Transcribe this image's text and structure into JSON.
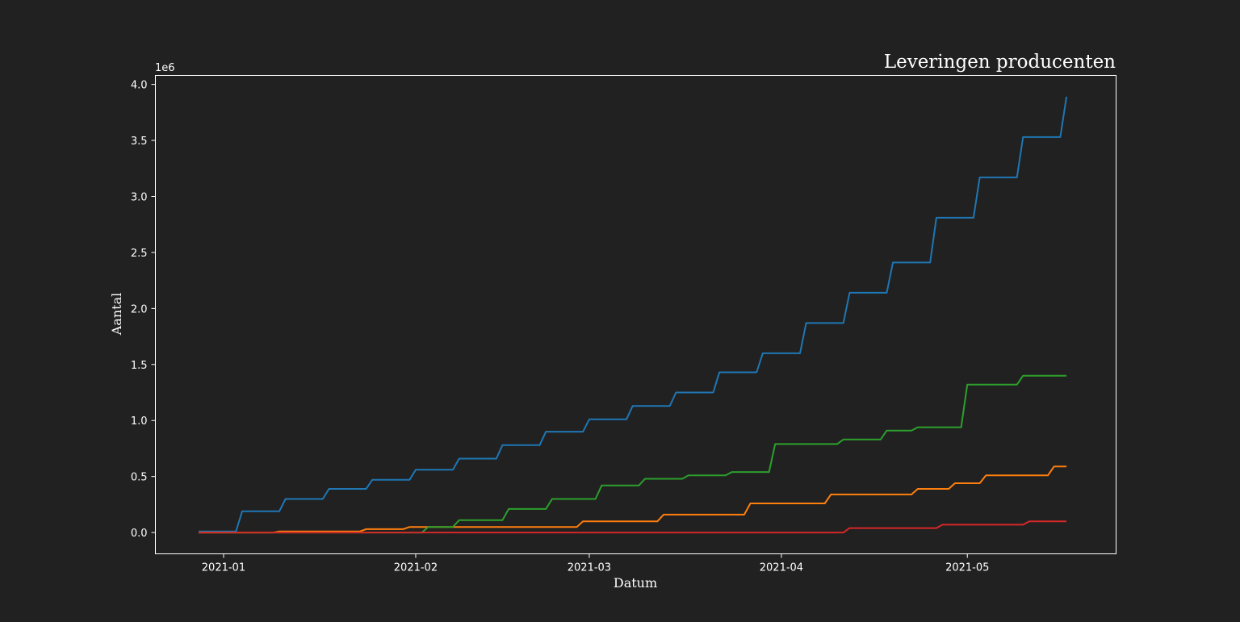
{
  "chart_data": {
    "type": "line",
    "title": "Leveringen producenten",
    "xlabel": "Datum",
    "ylabel": "Aantal",
    "y_multiplier_label": "1e6",
    "x_tick_labels": [
      "2021-01",
      "2021-02",
      "2021-03",
      "2021-04",
      "2021-05"
    ],
    "x_ticks": [
      "2021-01-01",
      "2021-02-01",
      "2021-03-01",
      "2021-04-01",
      "2021-05-01"
    ],
    "y_tick_labels": [
      "0.0",
      "0.5",
      "1.0",
      "1.5",
      "2.0",
      "2.5",
      "3.0",
      "3.5",
      "4.0"
    ],
    "y_ticks": [
      0.0,
      0.5,
      1.0,
      1.5,
      2.0,
      2.5,
      3.0,
      3.5,
      4.0
    ],
    "xlim": [
      "2020-12-21",
      "2021-05-25"
    ],
    "ylim": [
      -0.19,
      4.08
    ],
    "grid": false,
    "background": "#212121",
    "series": [
      {
        "color": "#1f77b4",
        "points": [
          [
            "2020-12-28",
            0.01
          ],
          [
            "2021-01-03",
            0.01
          ],
          [
            "2021-01-04",
            0.19
          ],
          [
            "2021-01-10",
            0.19
          ],
          [
            "2021-01-11",
            0.3
          ],
          [
            "2021-01-17",
            0.3
          ],
          [
            "2021-01-18",
            0.39
          ],
          [
            "2021-01-24",
            0.39
          ],
          [
            "2021-01-25",
            0.47
          ],
          [
            "2021-01-31",
            0.47
          ],
          [
            "2021-02-01",
            0.56
          ],
          [
            "2021-02-07",
            0.56
          ],
          [
            "2021-02-08",
            0.66
          ],
          [
            "2021-02-14",
            0.66
          ],
          [
            "2021-02-15",
            0.78
          ],
          [
            "2021-02-21",
            0.78
          ],
          [
            "2021-02-22",
            0.9
          ],
          [
            "2021-02-28",
            0.9
          ],
          [
            "2021-03-01",
            1.01
          ],
          [
            "2021-03-07",
            1.01
          ],
          [
            "2021-03-08",
            1.13
          ],
          [
            "2021-03-14",
            1.13
          ],
          [
            "2021-03-15",
            1.25
          ],
          [
            "2021-03-21",
            1.25
          ],
          [
            "2021-03-22",
            1.43
          ],
          [
            "2021-03-28",
            1.43
          ],
          [
            "2021-03-29",
            1.6
          ],
          [
            "2021-04-04",
            1.6
          ],
          [
            "2021-04-05",
            1.87
          ],
          [
            "2021-04-11",
            1.87
          ],
          [
            "2021-04-12",
            2.14
          ],
          [
            "2021-04-18",
            2.14
          ],
          [
            "2021-04-19",
            2.41
          ],
          [
            "2021-04-25",
            2.41
          ],
          [
            "2021-04-26",
            2.81
          ],
          [
            "2021-05-02",
            2.81
          ],
          [
            "2021-05-03",
            3.17
          ],
          [
            "2021-05-09",
            3.17
          ],
          [
            "2021-05-10",
            3.53
          ],
          [
            "2021-05-16",
            3.53
          ],
          [
            "2021-05-17",
            3.89
          ]
        ]
      },
      {
        "color": "#ff7f0e",
        "points": [
          [
            "2020-12-28",
            0.0
          ],
          [
            "2021-01-09",
            0.0
          ],
          [
            "2021-01-10",
            0.01
          ],
          [
            "2021-01-23",
            0.01
          ],
          [
            "2021-01-24",
            0.03
          ],
          [
            "2021-01-30",
            0.03
          ],
          [
            "2021-01-31",
            0.05
          ],
          [
            "2021-02-27",
            0.05
          ],
          [
            "2021-02-28",
            0.1
          ],
          [
            "2021-03-12",
            0.1
          ],
          [
            "2021-03-13",
            0.16
          ],
          [
            "2021-03-26",
            0.16
          ],
          [
            "2021-03-27",
            0.26
          ],
          [
            "2021-04-08",
            0.26
          ],
          [
            "2021-04-09",
            0.34
          ],
          [
            "2021-04-22",
            0.34
          ],
          [
            "2021-04-23",
            0.39
          ],
          [
            "2021-04-28",
            0.39
          ],
          [
            "2021-04-29",
            0.44
          ],
          [
            "2021-05-03",
            0.44
          ],
          [
            "2021-05-04",
            0.51
          ],
          [
            "2021-05-14",
            0.51
          ],
          [
            "2021-05-15",
            0.59
          ],
          [
            "2021-05-17",
            0.59
          ]
        ]
      },
      {
        "color": "#2ca02c",
        "points": [
          [
            "2020-12-28",
            0.0
          ],
          [
            "2021-02-02",
            0.0
          ],
          [
            "2021-02-03",
            0.05
          ],
          [
            "2021-02-07",
            0.05
          ],
          [
            "2021-02-08",
            0.11
          ],
          [
            "2021-02-15",
            0.11
          ],
          [
            "2021-02-16",
            0.21
          ],
          [
            "2021-02-22",
            0.21
          ],
          [
            "2021-02-23",
            0.3
          ],
          [
            "2021-03-02",
            0.3
          ],
          [
            "2021-03-03",
            0.42
          ],
          [
            "2021-03-09",
            0.42
          ],
          [
            "2021-03-10",
            0.48
          ],
          [
            "2021-03-16",
            0.48
          ],
          [
            "2021-03-17",
            0.51
          ],
          [
            "2021-03-23",
            0.51
          ],
          [
            "2021-03-24",
            0.54
          ],
          [
            "2021-03-30",
            0.54
          ],
          [
            "2021-03-31",
            0.79
          ],
          [
            "2021-04-10",
            0.79
          ],
          [
            "2021-04-11",
            0.83
          ],
          [
            "2021-04-17",
            0.83
          ],
          [
            "2021-04-18",
            0.91
          ],
          [
            "2021-04-22",
            0.91
          ],
          [
            "2021-04-23",
            0.94
          ],
          [
            "2021-04-30",
            0.94
          ],
          [
            "2021-05-01",
            1.32
          ],
          [
            "2021-05-09",
            1.32
          ],
          [
            "2021-05-10",
            1.4
          ],
          [
            "2021-05-17",
            1.4
          ]
        ]
      },
      {
        "color": "#d62728",
        "points": [
          [
            "2020-12-28",
            0.0
          ],
          [
            "2021-04-11",
            0.0
          ],
          [
            "2021-04-12",
            0.04
          ],
          [
            "2021-04-26",
            0.04
          ],
          [
            "2021-04-27",
            0.07
          ],
          [
            "2021-05-10",
            0.07
          ],
          [
            "2021-05-11",
            0.1
          ],
          [
            "2021-05-17",
            0.1
          ]
        ]
      }
    ]
  }
}
